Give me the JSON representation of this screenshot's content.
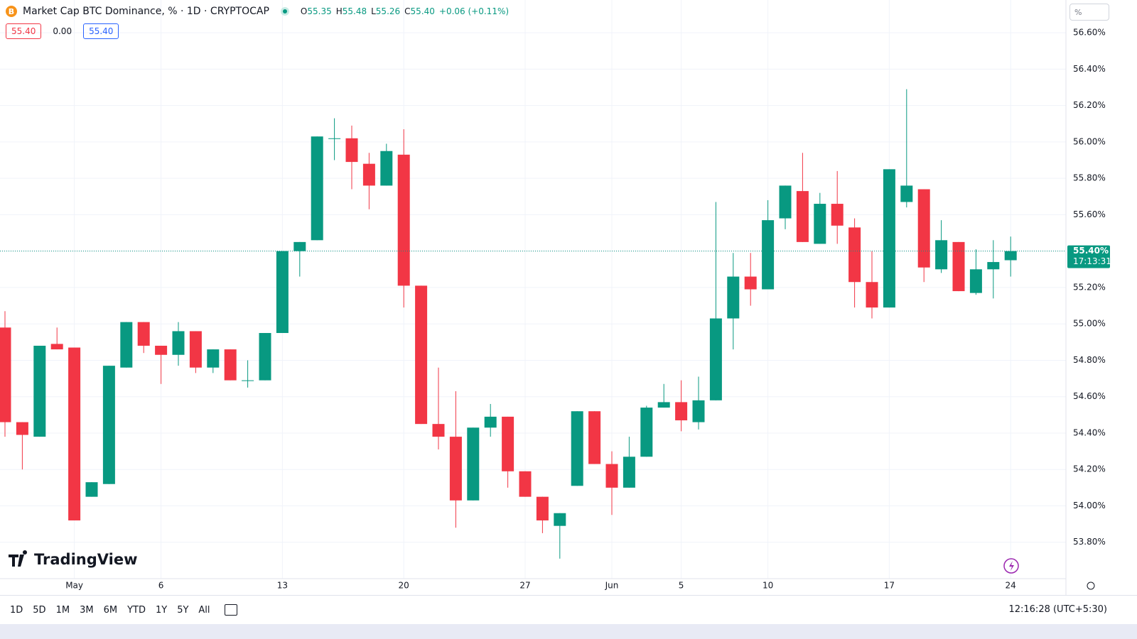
{
  "header": {
    "title": "Market Cap BTC Dominance, % · 1D · CRYPTOCAP",
    "ohlc": [
      {
        "label": "O",
        "value": "55.35"
      },
      {
        "label": "H",
        "value": "55.48"
      },
      {
        "label": "L",
        "value": "55.26"
      },
      {
        "label": "C",
        "value": "55.40"
      }
    ],
    "change": "+0.06 (+0.11%)",
    "badges": [
      "55.40",
      "0.00",
      "55.40"
    ]
  },
  "scale_mode": "%",
  "watermark": "TradingView",
  "chart_data": {
    "type": "candlestick",
    "categories": [
      null,
      null,
      null,
      null,
      "May",
      null,
      null,
      null,
      null,
      "6",
      null,
      null,
      null,
      null,
      null,
      null,
      "13",
      null,
      null,
      null,
      null,
      null,
      null,
      "20",
      null,
      null,
      null,
      null,
      null,
      null,
      "27",
      null,
      null,
      null,
      null,
      "Jun",
      null,
      null,
      null,
      "5",
      null,
      null,
      null,
      null,
      "10",
      null,
      null,
      null,
      null,
      null,
      null,
      "17",
      null,
      null,
      null,
      null,
      null,
      null,
      "24"
    ],
    "open": [
      54.98,
      54.46,
      54.38,
      54.89,
      54.87,
      54.05,
      54.12,
      54.76,
      55.01,
      54.88,
      54.83,
      54.96,
      54.76,
      54.86,
      54.69,
      54.69,
      54.95,
      55.4,
      55.46,
      56.02,
      56.02,
      55.88,
      55.76,
      55.93,
      55.21,
      54.45,
      54.38,
      54.03,
      54.43,
      54.49,
      54.19,
      54.05,
      53.89,
      54.11,
      54.52,
      54.23,
      54.1,
      54.27,
      54.54,
      54.57,
      54.46,
      54.58,
      55.03,
      55.26,
      55.19,
      55.58,
      55.73,
      55.44,
      55.66,
      55.53,
      55.23,
      55.09,
      55.67,
      55.74,
      55.3,
      55.45,
      55.17,
      55.3,
      55.35
    ],
    "high": [
      55.07,
      54.46,
      54.88,
      54.98,
      54.87,
      54.13,
      54.77,
      55.01,
      55.01,
      54.88,
      55.01,
      54.96,
      54.86,
      54.86,
      54.8,
      54.95,
      55.4,
      55.45,
      56.03,
      56.13,
      56.09,
      55.94,
      55.99,
      56.07,
      55.21,
      54.76,
      54.63,
      54.43,
      54.56,
      54.49,
      54.19,
      54.05,
      53.96,
      54.52,
      54.52,
      54.3,
      54.38,
      54.55,
      54.67,
      54.69,
      54.71,
      55.67,
      55.39,
      55.39,
      55.68,
      55.76,
      55.94,
      55.72,
      55.84,
      55.58,
      55.4,
      55.85,
      56.29,
      55.74,
      55.57,
      55.45,
      55.41,
      55.46,
      55.48
    ],
    "low": [
      54.38,
      54.2,
      54.38,
      54.86,
      53.92,
      54.05,
      54.12,
      54.76,
      54.84,
      54.67,
      54.77,
      54.73,
      54.73,
      54.69,
      54.65,
      54.69,
      54.95,
      55.26,
      55.46,
      55.9,
      55.74,
      55.63,
      55.76,
      55.09,
      54.45,
      54.31,
      53.88,
      54.03,
      54.38,
      54.1,
      54.05,
      53.85,
      53.71,
      54.11,
      54.23,
      53.95,
      54.1,
      54.27,
      54.54,
      54.41,
      54.42,
      54.58,
      54.86,
      55.1,
      55.19,
      55.52,
      55.45,
      55.44,
      55.44,
      55.09,
      55.03,
      55.09,
      55.64,
      55.23,
      55.28,
      55.18,
      55.16,
      55.14,
      55.26
    ],
    "close": [
      54.46,
      54.39,
      54.88,
      54.86,
      53.92,
      54.13,
      54.77,
      55.01,
      54.88,
      54.83,
      54.96,
      54.76,
      54.86,
      54.69,
      54.69,
      54.95,
      55.4,
      55.45,
      56.03,
      56.02,
      55.89,
      55.76,
      55.95,
      55.21,
      54.45,
      54.38,
      54.03,
      54.43,
      54.49,
      54.19,
      54.05,
      53.92,
      53.96,
      54.52,
      54.23,
      54.1,
      54.27,
      54.54,
      54.57,
      54.47,
      54.58,
      55.03,
      55.26,
      55.19,
      55.57,
      55.76,
      55.45,
      55.66,
      55.54,
      55.23,
      55.09,
      55.85,
      55.76,
      55.31,
      55.46,
      55.18,
      55.3,
      55.34,
      55.4
    ],
    "up_color": "#089981",
    "down_color": "#f23645",
    "ylim": [
      53.6,
      56.78
    ],
    "yticks": [
      {
        "value": 53.8,
        "label": "53.80%"
      },
      {
        "value": 54.0,
        "label": "54.00%"
      },
      {
        "value": 54.2,
        "label": "54.20%"
      },
      {
        "value": 54.4,
        "label": "54.40%"
      },
      {
        "value": 54.6,
        "label": "54.60%"
      },
      {
        "value": 54.8,
        "label": "54.80%"
      },
      {
        "value": 55.0,
        "label": "55.00%"
      },
      {
        "value": 55.2,
        "label": "55.20%"
      },
      {
        "value": 55.4,
        "label": "55.40%"
      },
      {
        "value": 55.6,
        "label": "55.60%"
      },
      {
        "value": 55.8,
        "label": "55.80%"
      },
      {
        "value": 56.0,
        "label": "56.00%"
      },
      {
        "value": 56.2,
        "label": "56.20%"
      },
      {
        "value": 56.4,
        "label": "56.40%"
      },
      {
        "value": 56.6,
        "label": "56.60%"
      }
    ],
    "grid": true,
    "last_price": {
      "label": "55.40%",
      "countdown": "17:13:31"
    }
  },
  "toolbar": {
    "ranges": [
      "1D",
      "5D",
      "1M",
      "3M",
      "6M",
      "YTD",
      "1Y",
      "5Y",
      "All"
    ],
    "clock": "12:16:28 (UTC+5:30)"
  }
}
